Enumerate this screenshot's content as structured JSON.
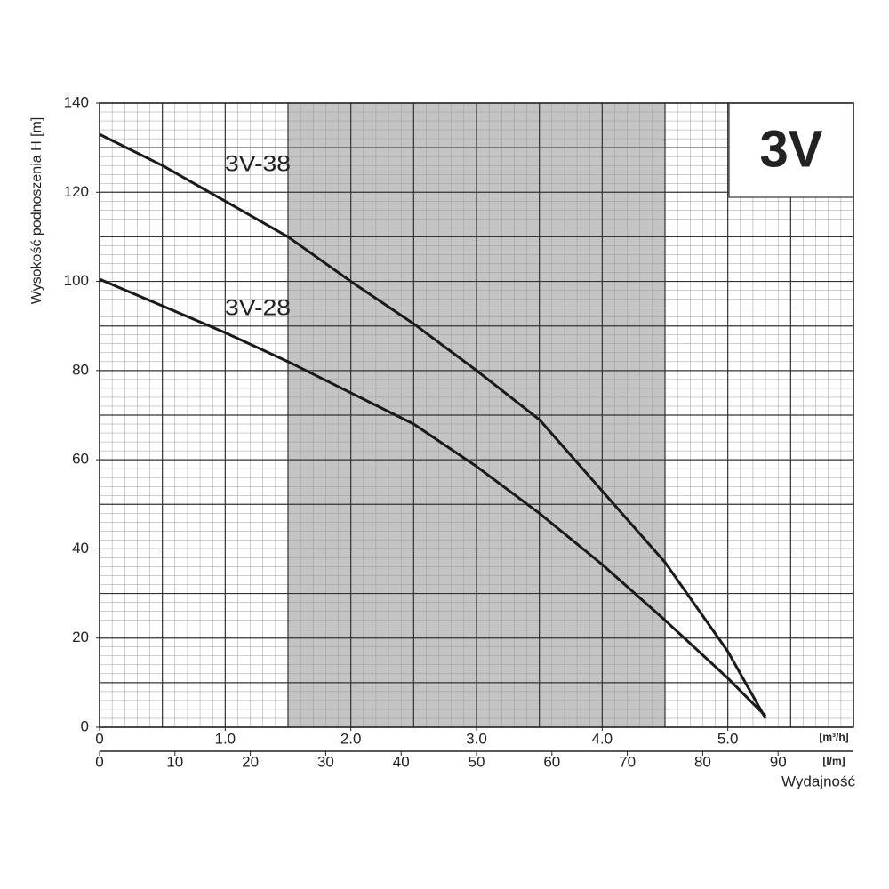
{
  "chart_data": {
    "type": "line",
    "badge": "3V",
    "ylabel": "Wysokość podnoszenia H [m]",
    "xlabel": "Wydajność",
    "xunit": "[m³/h]",
    "x2unit": "[l/m]",
    "x": [
      0,
      0.5,
      1.0,
      1.5,
      2.0,
      2.5,
      3.0,
      3.5,
      4.0,
      4.5,
      5.0,
      5.3
    ],
    "series": [
      {
        "name": "3V-38",
        "color": "#1a1a1a",
        "values": [
          133,
          126,
          118,
          110,
          100,
          90.5,
          80,
          69,
          53,
          37,
          17,
          2
        ]
      },
      {
        "name": "3V-28",
        "color": "#1a1a1a",
        "values": [
          100.5,
          94.5,
          88.5,
          82,
          75,
          68,
          58.5,
          48,
          36.5,
          24,
          11,
          2.5
        ]
      }
    ],
    "label_color": "#b53a3a",
    "xlim": [
      0,
      6
    ],
    "xticks": [
      0,
      {
        "value": 1,
        "label": "1.0"
      },
      {
        "value": 2,
        "label": "2.0"
      },
      {
        "value": 3,
        "label": "3.0"
      },
      {
        "value": 4,
        "label": "4.0"
      },
      {
        "value": 5,
        "label": "5.0"
      }
    ],
    "x2lim": [
      0,
      100
    ],
    "x2ticks": [
      0,
      10,
      20,
      30,
      40,
      50,
      60,
      70,
      80,
      90
    ],
    "ylim": [
      0,
      140
    ],
    "yticks": [
      0,
      20,
      40,
      60,
      80,
      100,
      120,
      140
    ],
    "grid": {
      "major": [
        0.5,
        10
      ],
      "minor": [
        0.1,
        2
      ]
    },
    "shaded_range": [
      1.5,
      4.5
    ],
    "shade_color": "#c4c4c4"
  }
}
